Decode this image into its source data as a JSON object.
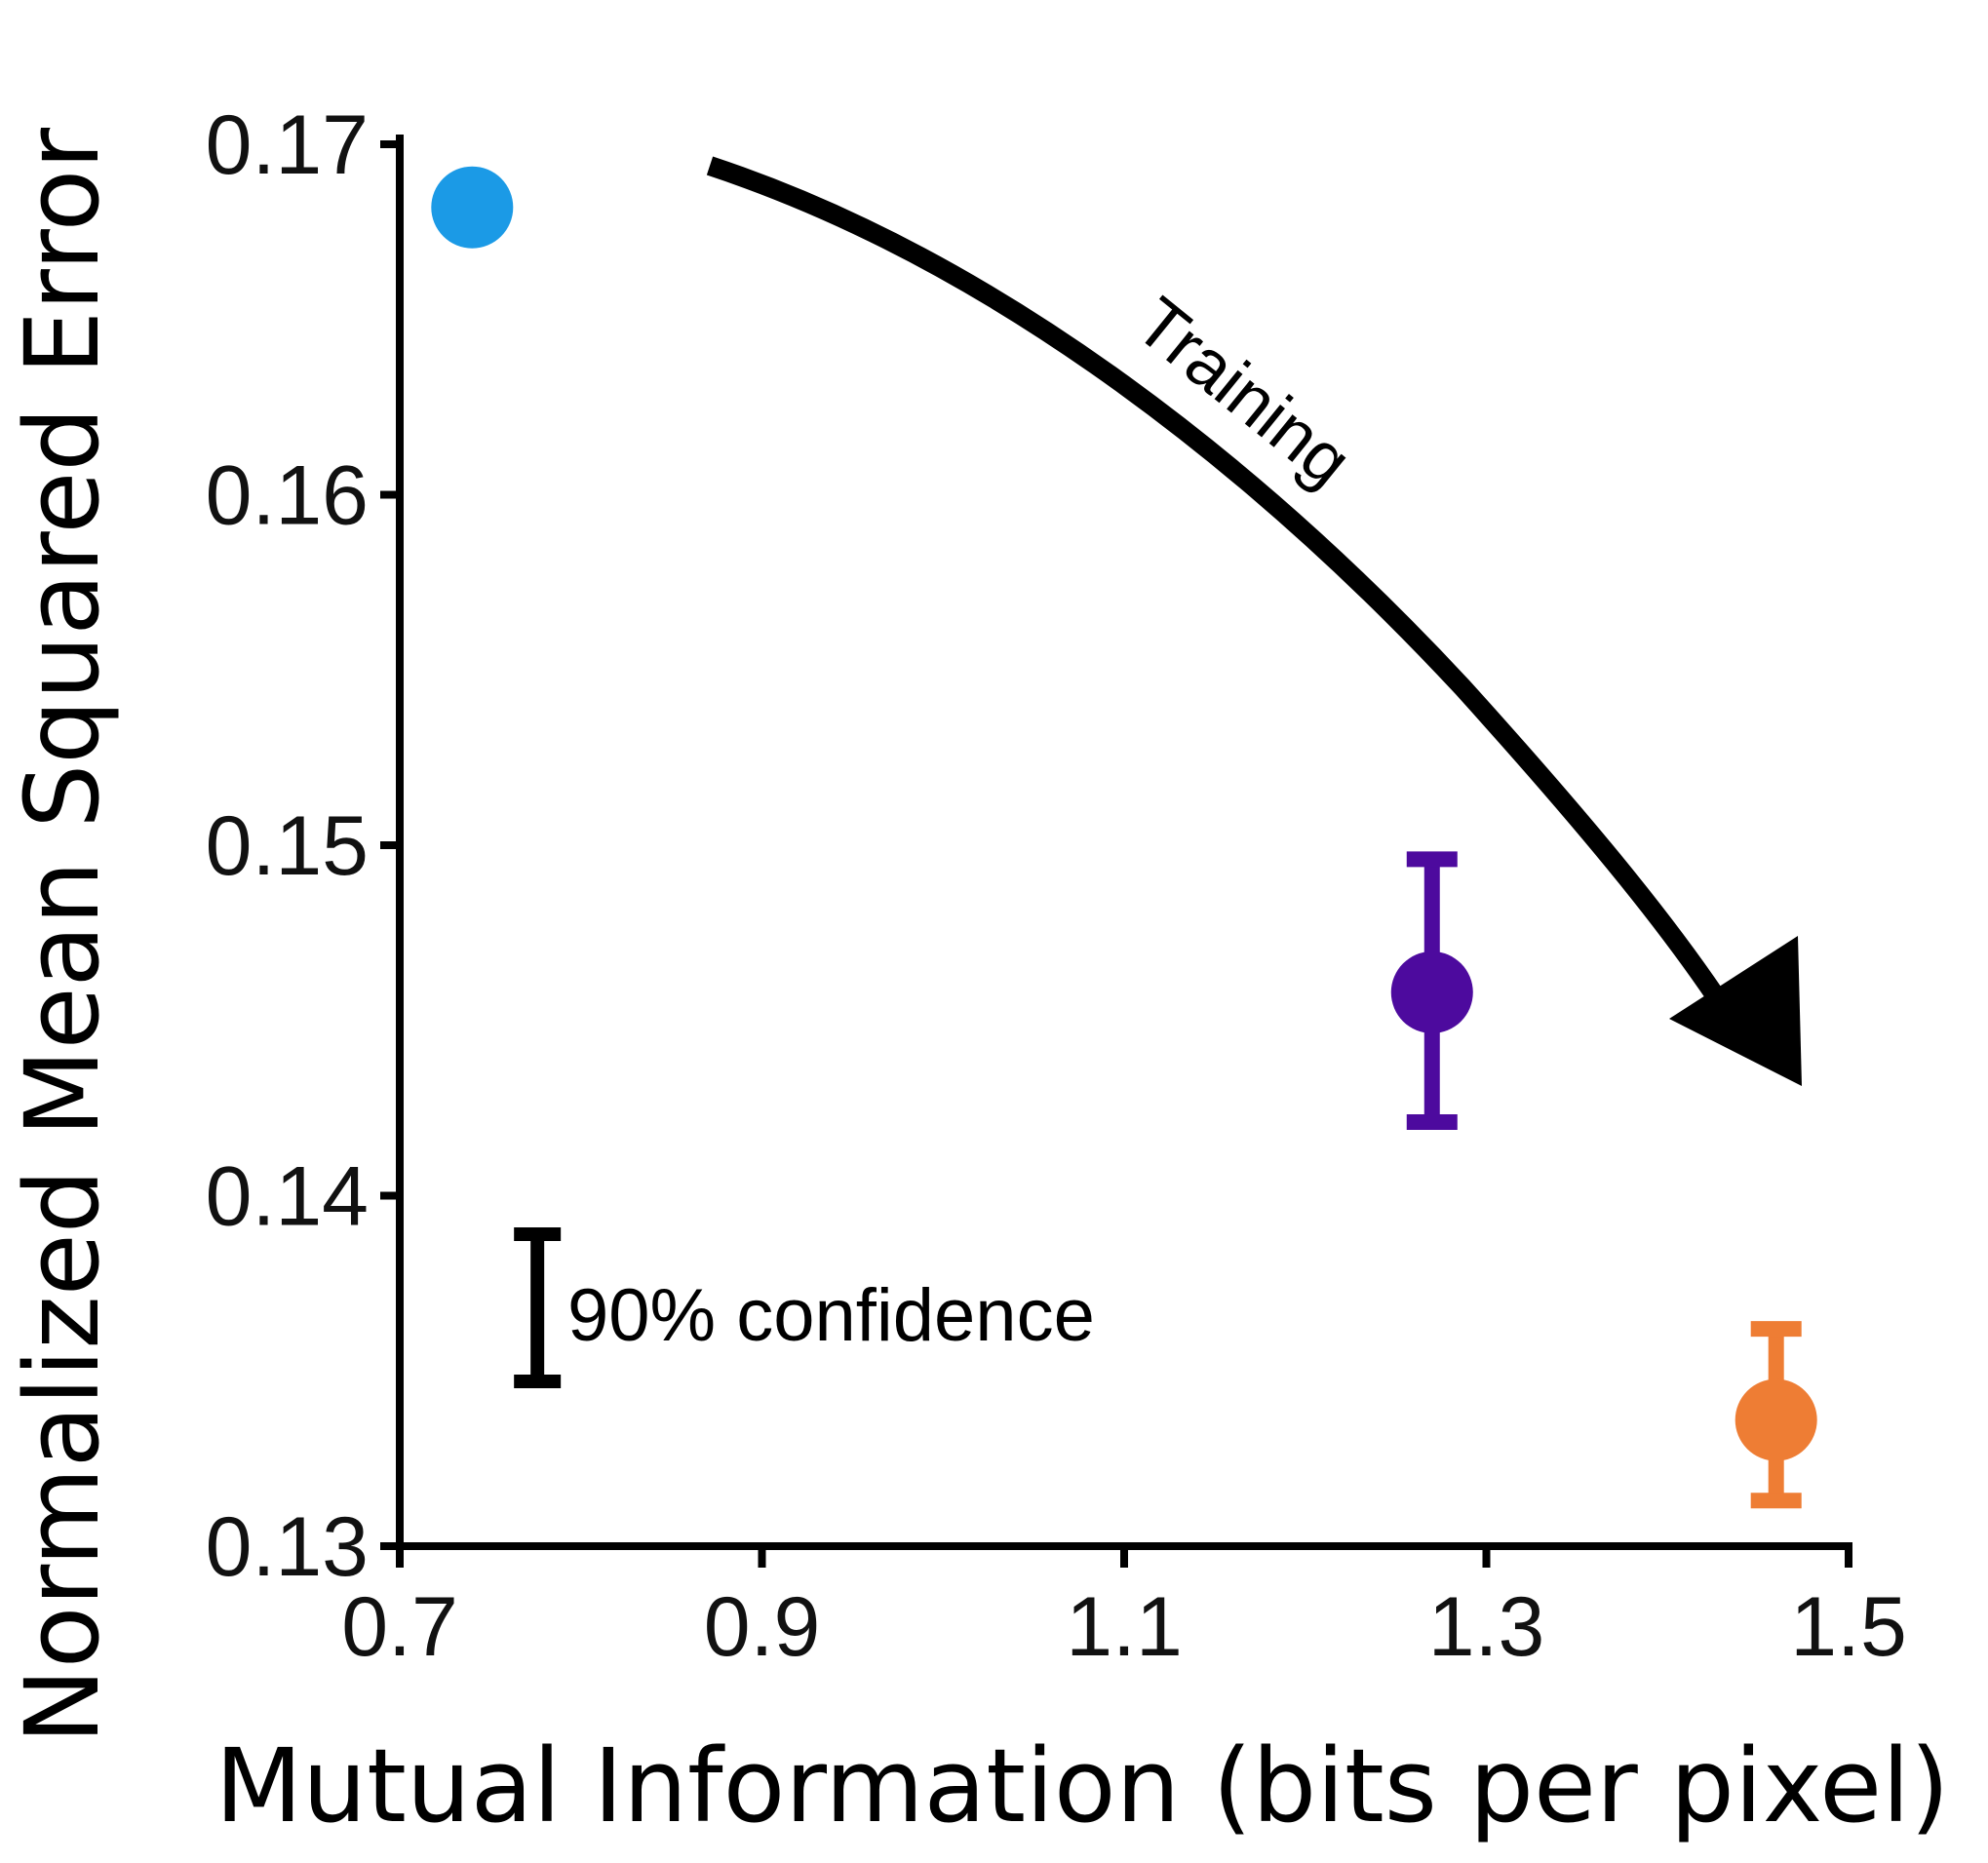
{
  "chart_data": {
    "type": "scatter",
    "title": "",
    "xlabel": "Mutual Information (bits per pixel)",
    "ylabel": "Normalized Mean Squared Error",
    "xlim": [
      0.7,
      1.5
    ],
    "ylim": [
      0.13,
      0.17
    ],
    "x_ticks": [
      0.7,
      0.9,
      1.1,
      1.3,
      1.5
    ],
    "x_tick_labels": [
      "0.7",
      "0.9",
      "1.1",
      "1.3",
      "1.5"
    ],
    "y_ticks": [
      0.13,
      0.14,
      0.15,
      0.16,
      0.17
    ],
    "y_tick_labels": [
      "0.13",
      "0.14",
      "0.15",
      "0.16",
      "0.17"
    ],
    "grid": false,
    "points": [
      {
        "x": 0.74,
        "y": 0.1682,
        "err_low": 0.1676,
        "err_high": 0.1687,
        "color": "#1B9AE6"
      },
      {
        "x": 1.27,
        "y": 0.1458,
        "err_low": 0.1421,
        "err_high": 0.1496,
        "color": "#4D0A9E"
      },
      {
        "x": 1.46,
        "y": 0.1336,
        "err_low": 0.1313,
        "err_high": 0.1362,
        "color": "#EE7D34"
      }
    ],
    "annotations": {
      "arrow_label": "Training",
      "legend_label": "90% confidence",
      "legend_errorbar": {
        "x": 0.776,
        "y_low": 0.1347,
        "y_high": 0.1389
      }
    }
  }
}
